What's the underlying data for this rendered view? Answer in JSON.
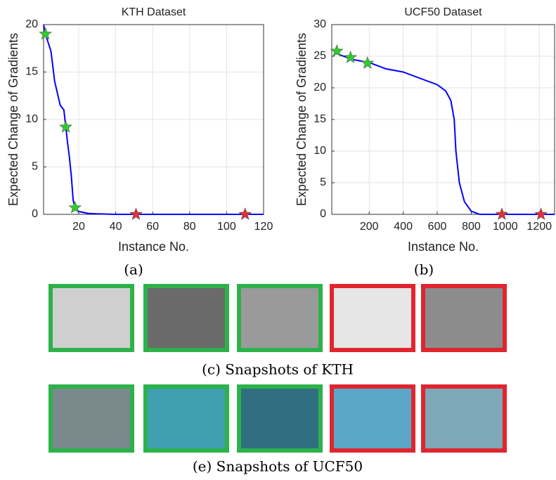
{
  "chart_data": [
    {
      "type": "line",
      "title": "KTH Dataset",
      "xlabel": "Instance No.",
      "ylabel": "Expected Change of Gradients",
      "xlim": [
        1,
        120
      ],
      "xticks": [
        20,
        40,
        60,
        80,
        100,
        120
      ],
      "ylim": [
        0,
        20
      ],
      "yticks": [
        0,
        5,
        10,
        15,
        20
      ],
      "grid": true,
      "line": {
        "color": "#0000ff",
        "x": [
          1,
          2,
          5,
          7,
          10,
          12,
          13,
          14,
          15,
          16,
          17,
          18,
          20,
          25,
          30,
          40,
          120
        ],
        "values": [
          20,
          19,
          17.2,
          14,
          11.5,
          11,
          9.2,
          7.5,
          6,
          4,
          1.5,
          0.7,
          0.3,
          0.1,
          0.05,
          0,
          0
        ]
      },
      "stars": {
        "x": [
          2,
          13,
          18,
          51,
          110
        ],
        "values": [
          19,
          9.2,
          0.7,
          0,
          0
        ],
        "colors": [
          "#2ecc2e",
          "#2ecc2e",
          "#2ecc2e",
          "#e0303a",
          "#e0303a"
        ]
      }
    },
    {
      "type": "line",
      "title": "UCF50 Dataset",
      "xlabel": "Instance No.",
      "ylabel": "Expected Change of Gradients",
      "xlim": [
        -20,
        1290
      ],
      "xticks": [
        200,
        400,
        600,
        800,
        1000,
        1200
      ],
      "ylim": [
        0,
        30
      ],
      "yticks": [
        0,
        5,
        10,
        15,
        20,
        25,
        30
      ],
      "grid": true,
      "line": {
        "color": "#0000ff",
        "x": [
          0,
          50,
          100,
          200,
          300,
          400,
          500,
          600,
          650,
          680,
          700,
          710,
          730,
          760,
          800,
          850,
          1290
        ],
        "values": [
          25.5,
          25,
          24.5,
          24,
          23,
          22.5,
          21.5,
          20.5,
          19.5,
          18,
          15,
          10,
          5,
          2,
          0.5,
          0,
          0
        ]
      },
      "stars": {
        "x": [
          10,
          90,
          190,
          980,
          1210
        ],
        "values": [
          25.8,
          24.8,
          23.9,
          0,
          0
        ],
        "colors": [
          "#2ecc2e",
          "#2ecc2e",
          "#2ecc2e",
          "#e0303a",
          "#e0303a"
        ]
      }
    }
  ],
  "subcaptions": [
    "(a)",
    "(b)"
  ],
  "captions": [
    "(c) Snapshots of KTH",
    "(e) Snapshots of UCF50"
  ]
}
